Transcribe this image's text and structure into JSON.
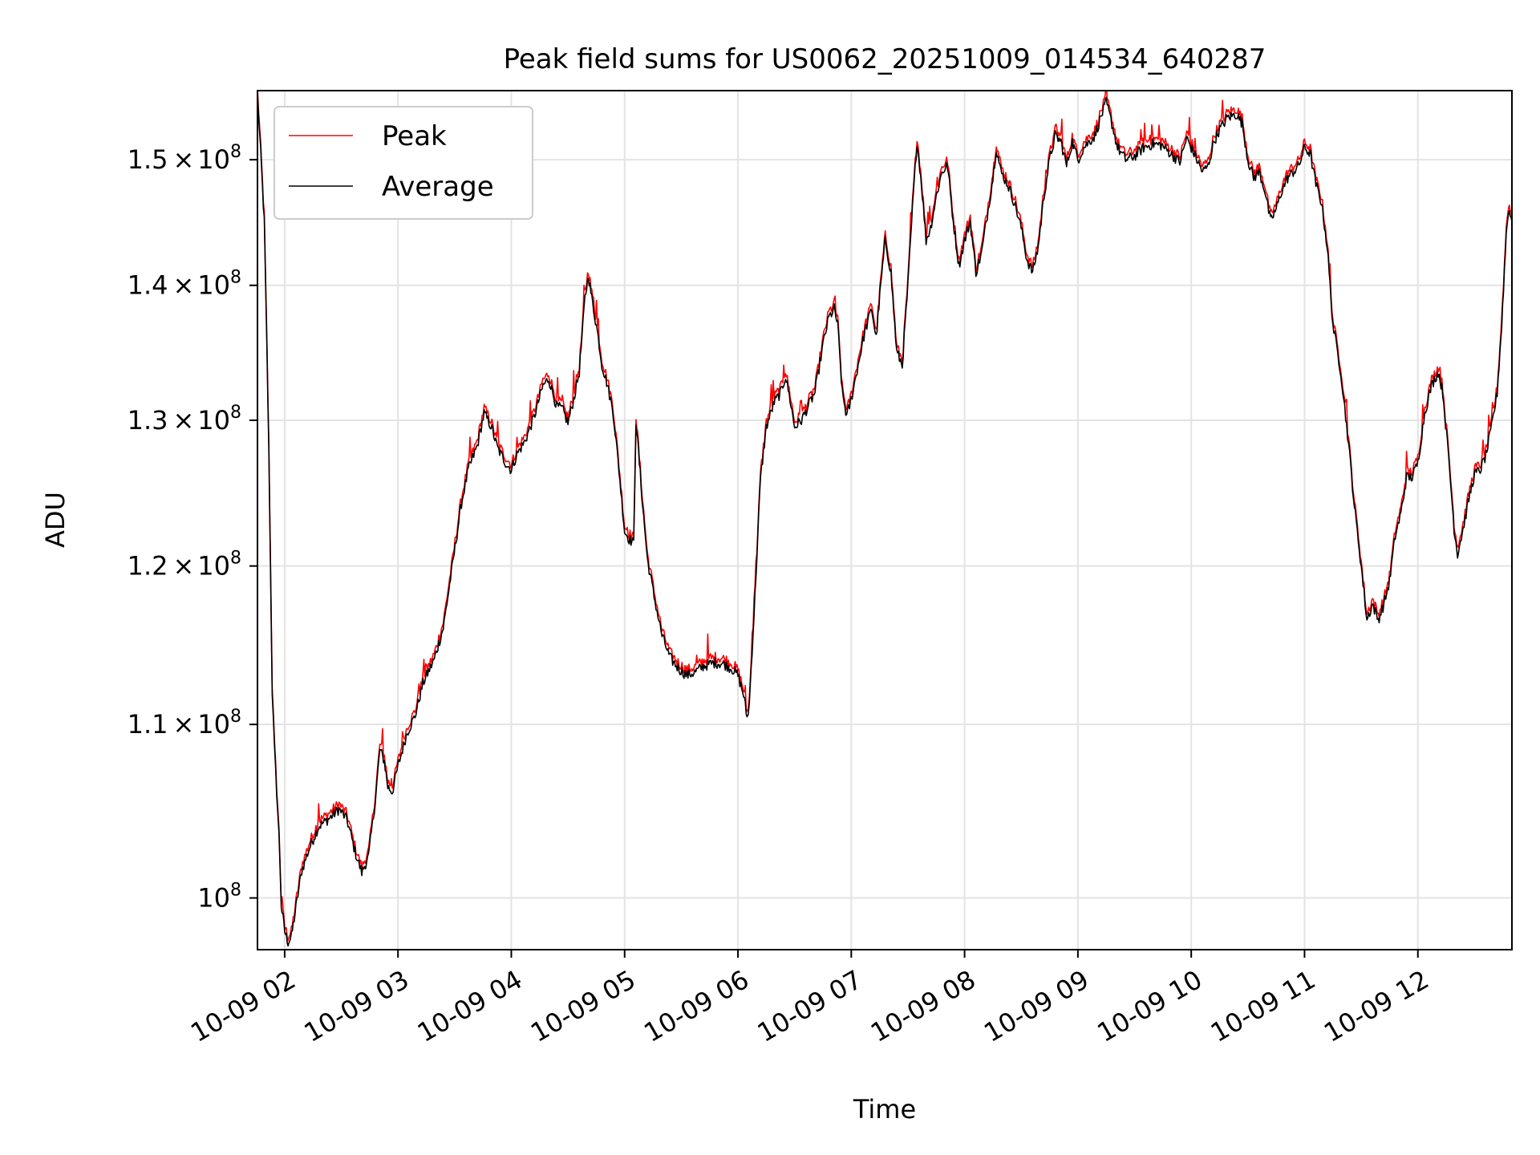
{
  "chart_data": {
    "type": "line",
    "title": "Peak field sums for US0062_20251009_014534_640287",
    "xlabel": "Time",
    "ylabel": "ADU",
    "yscale": "log",
    "xlim_hours": [
      1.76,
      12.83
    ],
    "ylim": [
      97200000,
      155800000
    ],
    "grid": true,
    "legend_position": "upper-left",
    "x_ticks": [
      {
        "hour": 2,
        "label": "10-09 02"
      },
      {
        "hour": 3,
        "label": "10-09 03"
      },
      {
        "hour": 4,
        "label": "10-09 04"
      },
      {
        "hour": 5,
        "label": "10-09 05"
      },
      {
        "hour": 6,
        "label": "10-09 06"
      },
      {
        "hour": 7,
        "label": "10-09 07"
      },
      {
        "hour": 8,
        "label": "10-09 08"
      },
      {
        "hour": 9,
        "label": "10-09 09"
      },
      {
        "hour": 10,
        "label": "10-09 10"
      },
      {
        "hour": 11,
        "label": "10-09 11"
      },
      {
        "hour": 12,
        "label": "10-09 12"
      }
    ],
    "y_ticks": [
      {
        "value": 100000000,
        "mantissa": "",
        "exp": "8"
      },
      {
        "value": 110000000,
        "mantissa": "1.1",
        "exp": "8"
      },
      {
        "value": 120000000,
        "mantissa": "1.2",
        "exp": "8"
      },
      {
        "value": 130000000,
        "mantissa": "1.3",
        "exp": "8"
      },
      {
        "value": 140000000,
        "mantissa": "1.4",
        "exp": "8"
      },
      {
        "value": 150000000,
        "mantissa": "1.5",
        "exp": "8"
      }
    ],
    "series": [
      {
        "name": "Peak",
        "color": "#ff0000",
        "offset_ratio": 1.003
      },
      {
        "name": "Average",
        "color": "#000000",
        "points": [
          [
            1.76,
            155.5
          ],
          [
            1.78,
            152.0
          ],
          [
            1.82,
            145.0
          ],
          [
            1.86,
            128.0
          ],
          [
            1.89,
            112.0
          ],
          [
            1.91,
            108.5
          ],
          [
            1.93,
            106.0
          ],
          [
            1.95,
            103.5
          ],
          [
            1.97,
            99.6
          ],
          [
            2.0,
            98.2
          ],
          [
            2.03,
            97.6
          ],
          [
            2.06,
            97.9
          ],
          [
            2.1,
            99.5
          ],
          [
            2.15,
            101.5
          ],
          [
            2.22,
            102.8
          ],
          [
            2.3,
            104.0
          ],
          [
            2.4,
            104.5
          ],
          [
            2.48,
            105.0
          ],
          [
            2.55,
            104.4
          ],
          [
            2.62,
            102.6
          ],
          [
            2.68,
            101.4
          ],
          [
            2.74,
            102.3
          ],
          [
            2.8,
            105.5
          ],
          [
            2.84,
            108.5
          ],
          [
            2.88,
            107.8
          ],
          [
            2.91,
            106.3
          ],
          [
            2.95,
            106.0
          ],
          [
            3.0,
            107.5
          ],
          [
            3.08,
            109.5
          ],
          [
            3.15,
            110.5
          ],
          [
            3.22,
            112.5
          ],
          [
            3.32,
            114.0
          ],
          [
            3.4,
            116.0
          ],
          [
            3.48,
            120.0
          ],
          [
            3.56,
            124.2
          ],
          [
            3.62,
            126.5
          ],
          [
            3.7,
            128.2
          ],
          [
            3.76,
            130.5
          ],
          [
            3.82,
            129.6
          ],
          [
            3.88,
            128.0
          ],
          [
            3.95,
            127.0
          ],
          [
            4.0,
            126.5
          ],
          [
            4.05,
            127.6
          ],
          [
            4.12,
            128.5
          ],
          [
            4.2,
            130.2
          ],
          [
            4.28,
            132.5
          ],
          [
            4.33,
            133.0
          ],
          [
            4.4,
            131.0
          ],
          [
            4.45,
            130.8
          ],
          [
            4.5,
            129.8
          ],
          [
            4.55,
            131.5
          ],
          [
            4.6,
            133.5
          ],
          [
            4.65,
            139.0
          ],
          [
            4.68,
            140.8
          ],
          [
            4.71,
            139.0
          ],
          [
            4.76,
            136.5
          ],
          [
            4.8,
            134.0
          ],
          [
            4.85,
            132.5
          ],
          [
            4.9,
            130.5
          ],
          [
            4.95,
            126.5
          ],
          [
            5.0,
            122.3
          ],
          [
            5.04,
            121.8
          ],
          [
            5.08,
            121.5
          ],
          [
            5.1,
            130.0
          ],
          [
            5.13,
            127.0
          ],
          [
            5.16,
            124.0
          ],
          [
            5.2,
            120.5
          ],
          [
            5.26,
            118.0
          ],
          [
            5.33,
            115.5
          ],
          [
            5.4,
            114.1
          ],
          [
            5.48,
            113.4
          ],
          [
            5.55,
            113.0
          ],
          [
            5.62,
            113.2
          ],
          [
            5.7,
            113.6
          ],
          [
            5.8,
            113.8
          ],
          [
            5.88,
            113.7
          ],
          [
            5.95,
            113.4
          ],
          [
            6.0,
            113.0
          ],
          [
            6.05,
            111.8
          ],
          [
            6.08,
            110.4
          ],
          [
            6.1,
            111.2
          ],
          [
            6.15,
            118.0
          ],
          [
            6.2,
            126.0
          ],
          [
            6.25,
            129.5
          ],
          [
            6.32,
            131.3
          ],
          [
            6.38,
            132.0
          ],
          [
            6.42,
            133.2
          ],
          [
            6.46,
            131.5
          ],
          [
            6.5,
            129.5
          ],
          [
            6.56,
            130.0
          ],
          [
            6.62,
            131.0
          ],
          [
            6.68,
            132.0
          ],
          [
            6.75,
            135.5
          ],
          [
            6.8,
            137.5
          ],
          [
            6.85,
            138.2
          ],
          [
            6.88,
            137.0
          ],
          [
            6.92,
            132.0
          ],
          [
            6.96,
            130.3
          ],
          [
            7.0,
            131.5
          ],
          [
            7.06,
            134.0
          ],
          [
            7.12,
            136.5
          ],
          [
            7.18,
            138.2
          ],
          [
            7.22,
            136.0
          ],
          [
            7.26,
            140.0
          ],
          [
            7.3,
            143.5
          ],
          [
            7.35,
            141.0
          ],
          [
            7.4,
            135.0
          ],
          [
            7.45,
            134.0
          ],
          [
            7.5,
            140.0
          ],
          [
            7.54,
            146.0
          ],
          [
            7.58,
            151.5
          ],
          [
            7.62,
            148.0
          ],
          [
            7.66,
            143.5
          ],
          [
            7.7,
            144.5
          ],
          [
            7.75,
            147.0
          ],
          [
            7.8,
            149.0
          ],
          [
            7.85,
            149.5
          ],
          [
            7.9,
            145.0
          ],
          [
            7.95,
            141.5
          ],
          [
            8.0,
            143.5
          ],
          [
            8.05,
            145.0
          ],
          [
            8.1,
            141.0
          ],
          [
            8.15,
            142.5
          ],
          [
            8.2,
            145.5
          ],
          [
            8.25,
            148.5
          ],
          [
            8.28,
            151.0
          ],
          [
            8.32,
            149.0
          ],
          [
            8.38,
            148.0
          ],
          [
            8.44,
            146.5
          ],
          [
            8.5,
            144.5
          ],
          [
            8.55,
            142.0
          ],
          [
            8.6,
            141.0
          ],
          [
            8.65,
            143.0
          ],
          [
            8.7,
            147.0
          ],
          [
            8.75,
            150.0
          ],
          [
            8.8,
            152.0
          ],
          [
            8.85,
            151.5
          ],
          [
            8.9,
            149.5
          ],
          [
            8.95,
            151.5
          ],
          [
            9.0,
            150.0
          ],
          [
            9.05,
            151.0
          ],
          [
            9.1,
            151.5
          ],
          [
            9.15,
            152.0
          ],
          [
            9.2,
            153.5
          ],
          [
            9.25,
            154.8
          ],
          [
            9.3,
            153.0
          ],
          [
            9.35,
            151.0
          ],
          [
            9.42,
            150.0
          ],
          [
            9.5,
            150.3
          ],
          [
            9.58,
            151.0
          ],
          [
            9.66,
            151.3
          ],
          [
            9.74,
            151.2
          ],
          [
            9.82,
            150.5
          ],
          [
            9.9,
            149.8
          ],
          [
            9.96,
            151.8
          ],
          [
            10.0,
            151.0
          ],
          [
            10.05,
            150.0
          ],
          [
            10.1,
            149.0
          ],
          [
            10.15,
            149.5
          ],
          [
            10.2,
            151.5
          ],
          [
            10.25,
            152.5
          ],
          [
            10.32,
            153.5
          ],
          [
            10.4,
            153.8
          ],
          [
            10.45,
            153.0
          ],
          [
            10.5,
            150.0
          ],
          [
            10.55,
            148.5
          ],
          [
            10.6,
            149.0
          ],
          [
            10.65,
            147.5
          ],
          [
            10.7,
            145.0
          ],
          [
            10.75,
            146.0
          ],
          [
            10.8,
            147.5
          ],
          [
            10.85,
            148.5
          ],
          [
            10.9,
            149.0
          ],
          [
            10.95,
            149.5
          ],
          [
            11.0,
            151.0
          ],
          [
            11.05,
            150.5
          ],
          [
            11.1,
            148.0
          ],
          [
            11.15,
            146.5
          ],
          [
            11.2,
            143.0
          ],
          [
            11.25,
            137.0
          ],
          [
            11.32,
            133.5
          ],
          [
            11.38,
            129.0
          ],
          [
            11.44,
            124.0
          ],
          [
            11.5,
            120.0
          ],
          [
            11.55,
            116.5
          ],
          [
            11.6,
            117.5
          ],
          [
            11.65,
            116.5
          ],
          [
            11.7,
            117.5
          ],
          [
            11.75,
            119.0
          ],
          [
            11.8,
            122.0
          ],
          [
            11.85,
            123.5
          ],
          [
            11.9,
            126.0
          ],
          [
            11.95,
            126.0
          ],
          [
            12.0,
            127.0
          ],
          [
            12.06,
            130.5
          ],
          [
            12.12,
            132.5
          ],
          [
            12.18,
            133.5
          ],
          [
            12.22,
            132.0
          ],
          [
            12.27,
            127.5
          ],
          [
            12.32,
            122.5
          ],
          [
            12.35,
            120.8
          ],
          [
            12.4,
            122.5
          ],
          [
            12.45,
            124.5
          ],
          [
            12.5,
            126.2
          ],
          [
            12.55,
            126.5
          ],
          [
            12.6,
            127.5
          ],
          [
            12.65,
            129.5
          ],
          [
            12.7,
            132.0
          ],
          [
            12.74,
            137.0
          ],
          [
            12.78,
            144.0
          ],
          [
            12.8,
            146.0
          ],
          [
            12.83,
            145.0
          ]
        ]
      }
    ]
  }
}
